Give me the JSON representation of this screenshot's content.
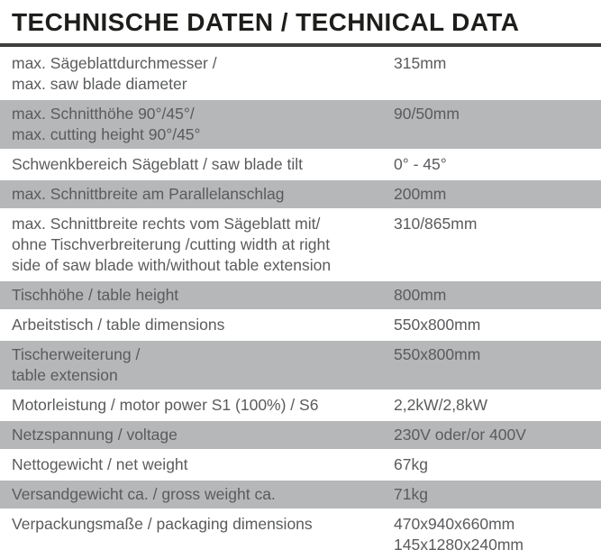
{
  "header": {
    "title": "TECHNISCHE DATEN / TECHNICAL DATA"
  },
  "colors": {
    "shaded_row": "#b6b7b9",
    "body_text": "#5a5b5d",
    "title_text": "#1e1e1c",
    "rule": "#3d3d3b"
  },
  "table": {
    "rows": [
      {
        "shaded": false,
        "label_lines": [
          "max. Sägeblattdurchmesser /",
          "max. saw blade diameter"
        ],
        "value_lines": [
          "315mm"
        ]
      },
      {
        "shaded": true,
        "label_lines": [
          "max. Schnitthöhe 90°/45°/",
          "max. cutting height 90°/45°"
        ],
        "value_lines": [
          "90/50mm"
        ]
      },
      {
        "shaded": false,
        "label_lines": [
          "Schwenkbereich Sägeblatt / saw blade tilt"
        ],
        "value_lines": [
          "0° - 45°"
        ]
      },
      {
        "shaded": true,
        "label_lines": [
          "max. Schnittbreite am Parallelanschlag"
        ],
        "value_lines": [
          "200mm"
        ]
      },
      {
        "shaded": false,
        "label_lines": [
          "max. Schnittbreite rechts vom Sägeblatt mit/",
          "ohne Tischverbreiterung /cutting width at right",
          "side of saw blade with/without table extension"
        ],
        "value_lines": [
          "310/865mm"
        ]
      },
      {
        "shaded": true,
        "label_lines": [
          "Tischhöhe / table height"
        ],
        "value_lines": [
          "800mm"
        ]
      },
      {
        "shaded": false,
        "label_lines": [
          "Arbeitstisch / table dimensions"
        ],
        "value_lines": [
          "550x800mm"
        ]
      },
      {
        "shaded": true,
        "label_lines": [
          "Tischerweiterung /",
          "table extension"
        ],
        "value_lines": [
          "550x800mm"
        ]
      },
      {
        "shaded": false,
        "label_lines": [
          "Motorleistung / motor power S1 (100%) / S6"
        ],
        "value_lines": [
          "2,2kW/2,8kW"
        ]
      },
      {
        "shaded": true,
        "label_lines": [
          "Netzspannung / voltage"
        ],
        "value_lines": [
          "230V oder/or 400V"
        ]
      },
      {
        "shaded": false,
        "label_lines": [
          "Nettogewicht / net weight"
        ],
        "value_lines": [
          "67kg"
        ]
      },
      {
        "shaded": true,
        "label_lines": [
          "Versandgewicht ca. / gross weight ca."
        ],
        "value_lines": [
          "71kg"
        ]
      },
      {
        "shaded": false,
        "label_lines": [
          "Verpackungsmaße / packaging dimensions"
        ],
        "value_lines": [
          "470x940x660mm",
          "145x1280x240mm"
        ]
      }
    ]
  }
}
